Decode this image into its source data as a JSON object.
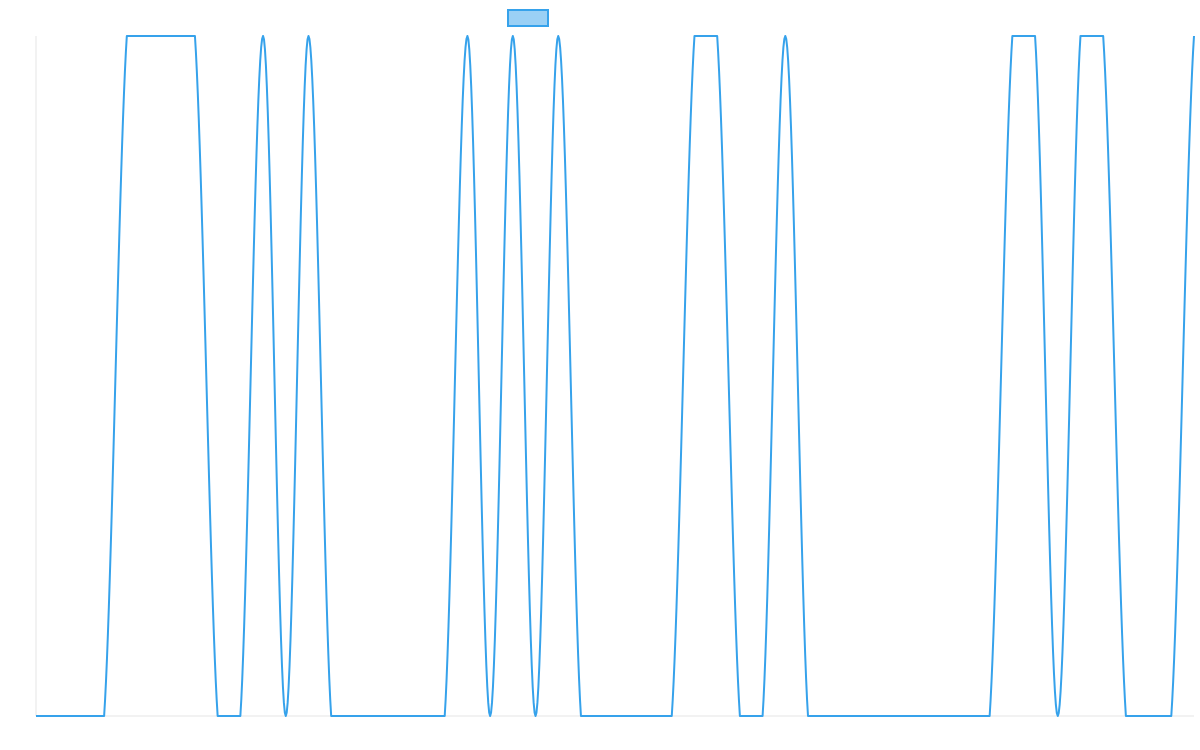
{
  "colors": {
    "series_line": "#36a2eb",
    "legend_fill": "#9ad0f5",
    "axis_line": "#e5e5e5",
    "background": "#ffffff"
  },
  "chart_data": {
    "type": "line",
    "title": "",
    "xlabel": "",
    "ylabel": "",
    "x": [
      0,
      1,
      2,
      3,
      4,
      5,
      6,
      7,
      8,
      9,
      10,
      11,
      12,
      13,
      14,
      15,
      16,
      17,
      18,
      19,
      20,
      21,
      22,
      23,
      24,
      25,
      26,
      27,
      28,
      29,
      30,
      31,
      32,
      33,
      34,
      35,
      36,
      37,
      38,
      39,
      40,
      41,
      42,
      43,
      44,
      45,
      46,
      47,
      48,
      49,
      50,
      51
    ],
    "xlim": [
      0,
      51
    ],
    "ylim": [
      0,
      1
    ],
    "series": [
      {
        "name": "",
        "values": [
          0,
          0,
          0,
          0,
          1,
          1,
          1,
          1,
          0,
          0,
          1,
          0,
          1,
          0,
          0,
          0,
          0,
          0,
          0,
          1,
          0,
          1,
          0,
          1,
          0,
          0,
          0,
          0,
          0,
          1,
          1,
          0,
          0,
          1,
          0,
          0,
          0,
          0,
          0,
          0,
          0,
          0,
          0,
          1,
          1,
          0,
          1,
          1,
          0,
          0,
          0,
          1
        ]
      }
    ],
    "legend": {
      "position": "top-center",
      "entries": [
        {
          "label": "",
          "marker": "box"
        }
      ]
    },
    "grid": false
  }
}
